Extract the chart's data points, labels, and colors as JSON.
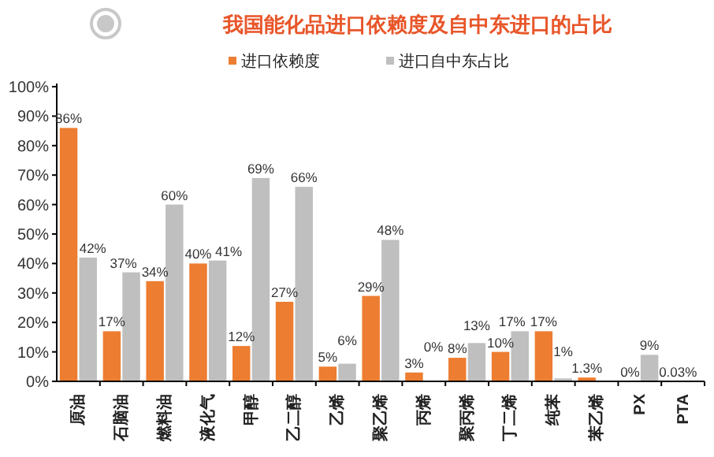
{
  "chart_data": {
    "type": "bar",
    "title": "我国能化品进口依赖度及自中东进口的占比",
    "categories": [
      "原油",
      "石脑油",
      "燃料油",
      "液化气",
      "甲醇",
      "乙二醇",
      "乙烯",
      "聚乙烯",
      "丙烯",
      "聚丙烯",
      "丁二烯",
      "纯苯",
      "苯乙烯",
      "PX",
      "PTA"
    ],
    "series": [
      {
        "name": "进口依赖度",
        "color": "#ed7d31",
        "values": [
          86,
          17,
          34,
          40,
          12,
          27,
          5,
          29,
          3,
          8,
          10,
          17,
          1.3,
          0,
          0.03
        ],
        "value_labels": [
          "86%",
          "17%",
          "34%",
          "40%",
          "12%",
          "27%",
          "5%",
          "29%",
          "3%",
          "8%",
          "10%",
          "17%",
          "1.3%",
          "0%",
          "0.03%"
        ]
      },
      {
        "name": "进口自中东占比",
        "color": "#bfbfbf",
        "values": [
          42,
          37,
          60,
          41,
          69,
          66,
          6,
          48,
          0,
          13,
          17,
          1,
          null,
          9,
          null
        ],
        "value_labels": [
          "42%",
          "37%",
          "60%",
          "41%",
          "69%",
          "66%",
          "6%",
          "48%",
          "0%",
          "13%",
          "17%",
          "1%",
          null,
          "9%",
          null
        ]
      }
    ],
    "ylim": [
      0,
      100
    ],
    "yticks": [
      {
        "value": 0,
        "label": "0%"
      },
      {
        "value": 10,
        "label": "10%"
      },
      {
        "value": 20,
        "label": "20%"
      },
      {
        "value": 30,
        "label": "30%"
      },
      {
        "value": 40,
        "label": "40%"
      },
      {
        "value": 50,
        "label": "50%"
      },
      {
        "value": 60,
        "label": "60%"
      },
      {
        "value": 70,
        "label": "70%"
      },
      {
        "value": 80,
        "label": "80%"
      },
      {
        "value": 90,
        "label": "90%"
      },
      {
        "value": 100,
        "label": "100%"
      }
    ],
    "legend": "top",
    "grid": false
  }
}
